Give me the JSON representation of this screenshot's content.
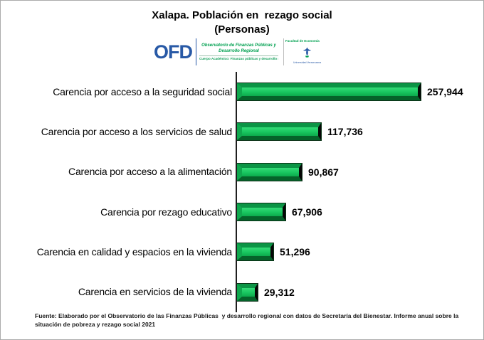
{
  "title": "Xalapa. Población en  rezago social",
  "subtitle": "(Personas)",
  "logo": {
    "acronym": "OFD",
    "org_line1": "Observatorio de Finanzas Públicas y",
    "org_line2": "Desarrollo Regional",
    "org_sub": "Cuerpo Académico: Finanzas públicas y desarrollo regional",
    "faculty": "Facultad de Economía",
    "university": "Universidad Veracruzana"
  },
  "chart_data": {
    "type": "bar",
    "orientation": "horizontal",
    "title": "Xalapa. Población en rezago social (Personas)",
    "categories": [
      "Carencia por acceso a la seguridad social",
      "Carencia por acceso a los servicios de salud",
      "Carencia por acceso a la alimentación",
      "Carencia por rezago educativo",
      "Carencia en calidad y espacios en la vivienda",
      "Carencia en servicios de la vivienda"
    ],
    "values": [
      257944,
      117736,
      90867,
      67906,
      51296,
      29312
    ],
    "value_labels": [
      "257,944",
      "117,736",
      "90,867",
      "67,906",
      "51,296",
      "29,312"
    ],
    "bar_color": "#12b558",
    "xlabel": "",
    "ylabel": "",
    "xlim": [
      0,
      335000
    ],
    "grid": false,
    "legend": "none",
    "data_labels": "outside-end"
  },
  "footer": "Fuente: Elaborado por el Observatorio de las Finanzas Públicas  y desarrollo regional con datos de Secretaría del Bienestar. Informe anual sobre la situación de pobreza y rezago social 2021"
}
